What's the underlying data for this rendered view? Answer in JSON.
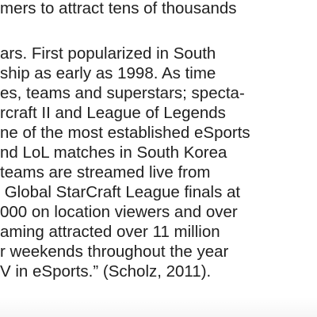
{
  "document": {
    "lines": [
      "mers to attract tens of thousands",
      "ars. First popularized in South",
      "ship as early as 1998. As time",
      "es, teams and superstars; specta-",
      "rcraft II and League of Legends",
      "ne of the most established eSports",
      "nd LoL matches in South Korea",
      "teams are streamed live from",
      " Global StarCraft League finals at",
      "000 on location viewers and over",
      "aming attracted over 11 million",
      "r weekends throughout the year",
      "V in eSports.” (Scholz, 2011)."
    ]
  }
}
